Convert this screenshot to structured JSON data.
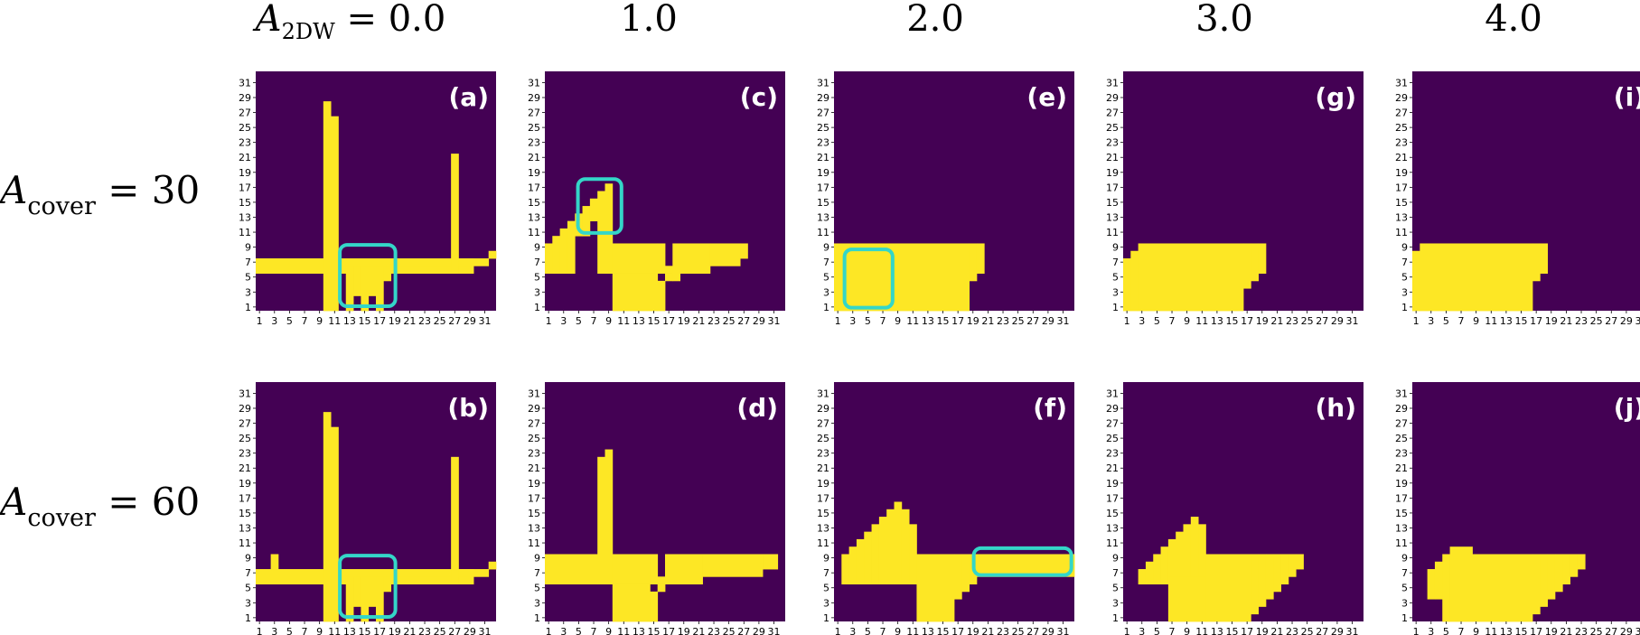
{
  "chart_data": {
    "type": "heatmap",
    "description_colors": {
      "background": "#440154",
      "filled": "#fde725",
      "highlight": "#34d6c8"
    },
    "column_headers": [
      {
        "var": "A",
        "sub": "2DW",
        "eq": " = 0.0"
      },
      {
        "text": "1.0"
      },
      {
        "text": "2.0"
      },
      {
        "text": "3.0"
      },
      {
        "text": "4.0"
      }
    ],
    "row_headers": [
      {
        "var": "A",
        "sub": "cover",
        "eq": " = 30"
      },
      {
        "var": "A",
        "sub": "cover",
        "eq": " = 60"
      }
    ],
    "grid_size": 32,
    "x_ticks": [
      "1",
      "3",
      "5",
      "7",
      "9",
      "11",
      "13",
      "15",
      "17",
      "19",
      "21",
      "23",
      "25",
      "27",
      "29",
      "31"
    ],
    "y_ticks": [
      "1",
      "3",
      "5",
      "7",
      "9",
      "11",
      "13",
      "15",
      "17",
      "19",
      "21",
      "23",
      "25",
      "27",
      "29",
      "31"
    ],
    "panels": [
      {
        "label": "(a)",
        "row": 0,
        "col": 0,
        "rects": [
          [
            0,
            29,
            6,
            7
          ],
          [
            9,
            10,
            1,
            28
          ],
          [
            10,
            11,
            1,
            26
          ],
          [
            12,
            13,
            1,
            6
          ],
          [
            13,
            14,
            3,
            6
          ],
          [
            14,
            15,
            1,
            6
          ],
          [
            15,
            16,
            3,
            6
          ],
          [
            16,
            17,
            1,
            6
          ],
          [
            17,
            18,
            5,
            6
          ],
          [
            18,
            19,
            6,
            7
          ],
          [
            19,
            26,
            6,
            6
          ],
          [
            26,
            27,
            6,
            21
          ],
          [
            27,
            31,
            7,
            7
          ],
          [
            31,
            32,
            8,
            8
          ]
        ],
        "highlights": [
          [
            11.2,
            18.6,
            0.6,
            8.8
          ]
        ]
      },
      {
        "label": "(b)",
        "row": 1,
        "col": 0,
        "rects": [
          [
            0,
            29,
            6,
            7
          ],
          [
            2,
            3,
            8,
            9
          ],
          [
            9,
            10,
            1,
            28
          ],
          [
            10,
            11,
            1,
            26
          ],
          [
            12,
            13,
            1,
            6
          ],
          [
            13,
            14,
            3,
            6
          ],
          [
            14,
            15,
            1,
            6
          ],
          [
            15,
            16,
            3,
            6
          ],
          [
            16,
            17,
            1,
            6
          ],
          [
            17,
            18,
            5,
            6
          ],
          [
            18,
            19,
            6,
            7
          ],
          [
            19,
            26,
            6,
            6
          ],
          [
            26,
            27,
            6,
            22
          ],
          [
            27,
            31,
            7,
            7
          ],
          [
            31,
            32,
            8,
            8
          ]
        ],
        "highlights": [
          [
            11.2,
            18.6,
            0.6,
            8.8
          ]
        ]
      },
      {
        "label": "(c)",
        "row": 0,
        "col": 1,
        "rects": [
          [
            0,
            1,
            6,
            9
          ],
          [
            1,
            2,
            6,
            10
          ],
          [
            2,
            3,
            6,
            11
          ],
          [
            3,
            4,
            6,
            12
          ],
          [
            4,
            5,
            11,
            13
          ],
          [
            5,
            6,
            11,
            14
          ],
          [
            6,
            7,
            13,
            15
          ],
          [
            7,
            8,
            6,
            16
          ],
          [
            8,
            9,
            6,
            17
          ],
          [
            9,
            15,
            6,
            9
          ],
          [
            9,
            15,
            1,
            5
          ],
          [
            15,
            16,
            6,
            9
          ],
          [
            15,
            16,
            1,
            4
          ],
          [
            16,
            17,
            6,
            6
          ],
          [
            16,
            17,
            5,
            5
          ],
          [
            17,
            18,
            5,
            9
          ],
          [
            18,
            22,
            6,
            9
          ],
          [
            22,
            26,
            7,
            9
          ],
          [
            26,
            27,
            8,
            9
          ]
        ],
        "highlights": [
          [
            4.4,
            10.2,
            10.4,
            17.6
          ]
        ]
      },
      {
        "label": "(d)",
        "row": 1,
        "col": 1,
        "rects": [
          [
            0,
            7,
            6,
            9
          ],
          [
            7,
            8,
            6,
            22
          ],
          [
            8,
            9,
            6,
            23
          ],
          [
            9,
            14,
            6,
            9
          ],
          [
            9,
            14,
            1,
            5
          ],
          [
            14,
            15,
            6,
            9
          ],
          [
            14,
            15,
            1,
            4
          ],
          [
            15,
            16,
            6,
            6
          ],
          [
            15,
            16,
            5,
            5
          ],
          [
            16,
            21,
            6,
            9
          ],
          [
            21,
            29,
            7,
            9
          ],
          [
            29,
            31,
            8,
            9
          ]
        ],
        "highlights": []
      },
      {
        "label": "(e)",
        "row": 0,
        "col": 2,
        "rects": [
          [
            0,
            18,
            1,
            9
          ],
          [
            18,
            19,
            5,
            9
          ],
          [
            19,
            20,
            6,
            9
          ]
        ],
        "highlights": [
          [
            1.4,
            7.8,
            0.4,
            8.2
          ]
        ]
      },
      {
        "label": "(f)",
        "row": 1,
        "col": 2,
        "rects": [
          [
            1,
            2,
            6,
            9
          ],
          [
            2,
            3,
            6,
            10
          ],
          [
            3,
            4,
            6,
            11
          ],
          [
            4,
            5,
            6,
            12
          ],
          [
            5,
            6,
            6,
            13
          ],
          [
            6,
            7,
            6,
            14
          ],
          [
            7,
            8,
            6,
            15
          ],
          [
            8,
            9,
            6,
            16
          ],
          [
            9,
            10,
            6,
            15
          ],
          [
            10,
            11,
            6,
            13
          ],
          [
            11,
            16,
            1,
            9
          ],
          [
            16,
            17,
            4,
            9
          ],
          [
            17,
            18,
            5,
            9
          ],
          [
            18,
            19,
            6,
            9
          ],
          [
            19,
            32,
            7,
            9
          ]
        ],
        "highlights": [
          [
            18.6,
            31.6,
            6.2,
            9.8
          ]
        ]
      },
      {
        "label": "(g)",
        "row": 0,
        "col": 3,
        "rects": [
          [
            0,
            1,
            1,
            7
          ],
          [
            1,
            2,
            1,
            8
          ],
          [
            2,
            16,
            1,
            9
          ],
          [
            16,
            17,
            4,
            9
          ],
          [
            17,
            18,
            5,
            9
          ],
          [
            18,
            19,
            6,
            9
          ]
        ],
        "highlights": []
      },
      {
        "label": "(h)",
        "row": 1,
        "col": 3,
        "rects": [
          [
            2,
            3,
            6,
            7
          ],
          [
            3,
            4,
            6,
            8
          ],
          [
            4,
            5,
            6,
            9
          ],
          [
            5,
            6,
            6,
            10
          ],
          [
            6,
            7,
            6,
            11
          ],
          [
            7,
            8,
            6,
            12
          ],
          [
            8,
            9,
            6,
            13
          ],
          [
            9,
            10,
            6,
            14
          ],
          [
            10,
            11,
            6,
            13
          ],
          [
            6,
            11,
            1,
            6
          ],
          [
            11,
            17,
            1,
            9
          ],
          [
            17,
            18,
            2,
            9
          ],
          [
            18,
            19,
            3,
            9
          ],
          [
            19,
            20,
            4,
            9
          ],
          [
            20,
            21,
            5,
            9
          ],
          [
            21,
            22,
            6,
            9
          ],
          [
            22,
            23,
            7,
            9
          ],
          [
            23,
            24,
            8,
            9
          ]
        ],
        "highlights": []
      },
      {
        "label": "(i)",
        "row": 0,
        "col": 4,
        "rects": [
          [
            0,
            1,
            1,
            8
          ],
          [
            1,
            16,
            1,
            9
          ],
          [
            16,
            17,
            5,
            9
          ],
          [
            17,
            18,
            6,
            9
          ]
        ],
        "highlights": []
      },
      {
        "label": "(j)",
        "row": 1,
        "col": 4,
        "rects": [
          [
            2,
            3,
            4,
            7
          ],
          [
            3,
            4,
            4,
            8
          ],
          [
            4,
            5,
            1,
            9
          ],
          [
            5,
            8,
            1,
            10
          ],
          [
            8,
            16,
            1,
            9
          ],
          [
            16,
            17,
            2,
            9
          ],
          [
            17,
            18,
            3,
            9
          ],
          [
            18,
            19,
            4,
            9
          ],
          [
            19,
            20,
            5,
            9
          ],
          [
            20,
            21,
            6,
            9
          ],
          [
            21,
            22,
            7,
            9
          ],
          [
            22,
            23,
            8,
            9
          ]
        ],
        "highlights": []
      }
    ]
  }
}
